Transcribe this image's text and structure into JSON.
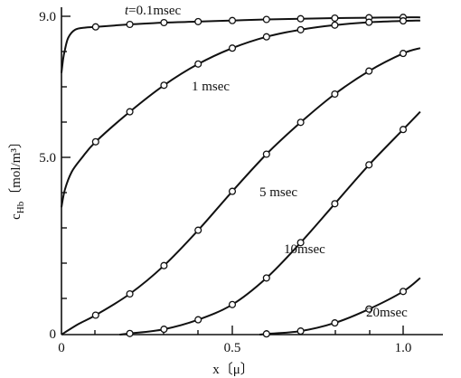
{
  "chart_data": {
    "type": "line",
    "xlabel": "x (μ)",
    "ylabel": "c_Hb (mol/m³)",
    "xlim": [
      0,
      1.1
    ],
    "ylim": [
      0,
      9.3
    ],
    "x_ticks": [
      "0",
      "0.5",
      "1.0"
    ],
    "y_ticks": [
      "0",
      "5.0",
      "9.0"
    ],
    "grid": false,
    "legend": "none",
    "series": [
      {
        "name": "t=0.1msec",
        "x": [
          0,
          0.005,
          0.01,
          0.02,
          0.04,
          0.07,
          0.1,
          0.2,
          0.3,
          0.4,
          0.5,
          0.6,
          0.7,
          0.8,
          0.9,
          1.0,
          1.05
        ],
        "y": [
          7.4,
          7.8,
          8.05,
          8.4,
          8.62,
          8.68,
          8.7,
          8.77,
          8.82,
          8.85,
          8.88,
          8.91,
          8.93,
          8.95,
          8.96,
          8.97,
          8.97
        ],
        "markers": [
          0.1,
          0.2,
          0.3,
          0.4,
          0.5,
          0.6,
          0.7,
          0.8,
          0.9,
          1.0
        ]
      },
      {
        "name": "1 msec",
        "x": [
          0,
          0.01,
          0.03,
          0.06,
          0.1,
          0.2,
          0.3,
          0.4,
          0.5,
          0.6,
          0.7,
          0.8,
          0.9,
          1.0,
          1.05
        ],
        "y": [
          3.6,
          4.1,
          4.6,
          5.0,
          5.45,
          6.3,
          7.05,
          7.65,
          8.1,
          8.42,
          8.62,
          8.75,
          8.83,
          8.87,
          8.88
        ],
        "markers": [
          0.1,
          0.2,
          0.3,
          0.4,
          0.5,
          0.6,
          0.7,
          0.8,
          0.9,
          1.0
        ]
      },
      {
        "name": "5 msec",
        "x": [
          0,
          0.05,
          0.1,
          0.2,
          0.3,
          0.4,
          0.5,
          0.6,
          0.7,
          0.8,
          0.9,
          1.0,
          1.05
        ],
        "y": [
          0.0,
          0.3,
          0.55,
          1.15,
          1.95,
          2.95,
          4.05,
          5.1,
          6.0,
          6.8,
          7.45,
          7.95,
          8.1
        ],
        "markers": [
          0.1,
          0.2,
          0.3,
          0.4,
          0.5,
          0.6,
          0.7,
          0.8,
          0.9,
          1.0
        ]
      },
      {
        "name": "10msec",
        "x": [
          0.17,
          0.2,
          0.3,
          0.4,
          0.5,
          0.6,
          0.7,
          0.8,
          0.9,
          1.0,
          1.05
        ],
        "y": [
          0.0,
          0.03,
          0.15,
          0.42,
          0.85,
          1.6,
          2.6,
          3.7,
          4.8,
          5.8,
          6.3
        ],
        "markers": [
          0.2,
          0.3,
          0.4,
          0.5,
          0.6,
          0.7,
          0.8,
          0.9,
          1.0
        ]
      },
      {
        "name": "20msec",
        "x": [
          0.58,
          0.6,
          0.7,
          0.8,
          0.9,
          1.0,
          1.05
        ],
        "y": [
          0.0,
          0.02,
          0.1,
          0.33,
          0.72,
          1.22,
          1.6
        ],
        "markers": [
          0.6,
          0.7,
          0.8,
          0.9,
          1.0
        ]
      }
    ]
  },
  "labels": {
    "t01": {
      "prefix": "t",
      "text": "=0.1msec"
    },
    "t1": "1 msec",
    "t5": "5 msec",
    "t10": "10msec",
    "t20": "20msec",
    "xaxis": "x〔μ〕",
    "yaxis_main": "c",
    "yaxis_sub": "Hb",
    "yaxis_unit": "〔mol/m³〕"
  }
}
